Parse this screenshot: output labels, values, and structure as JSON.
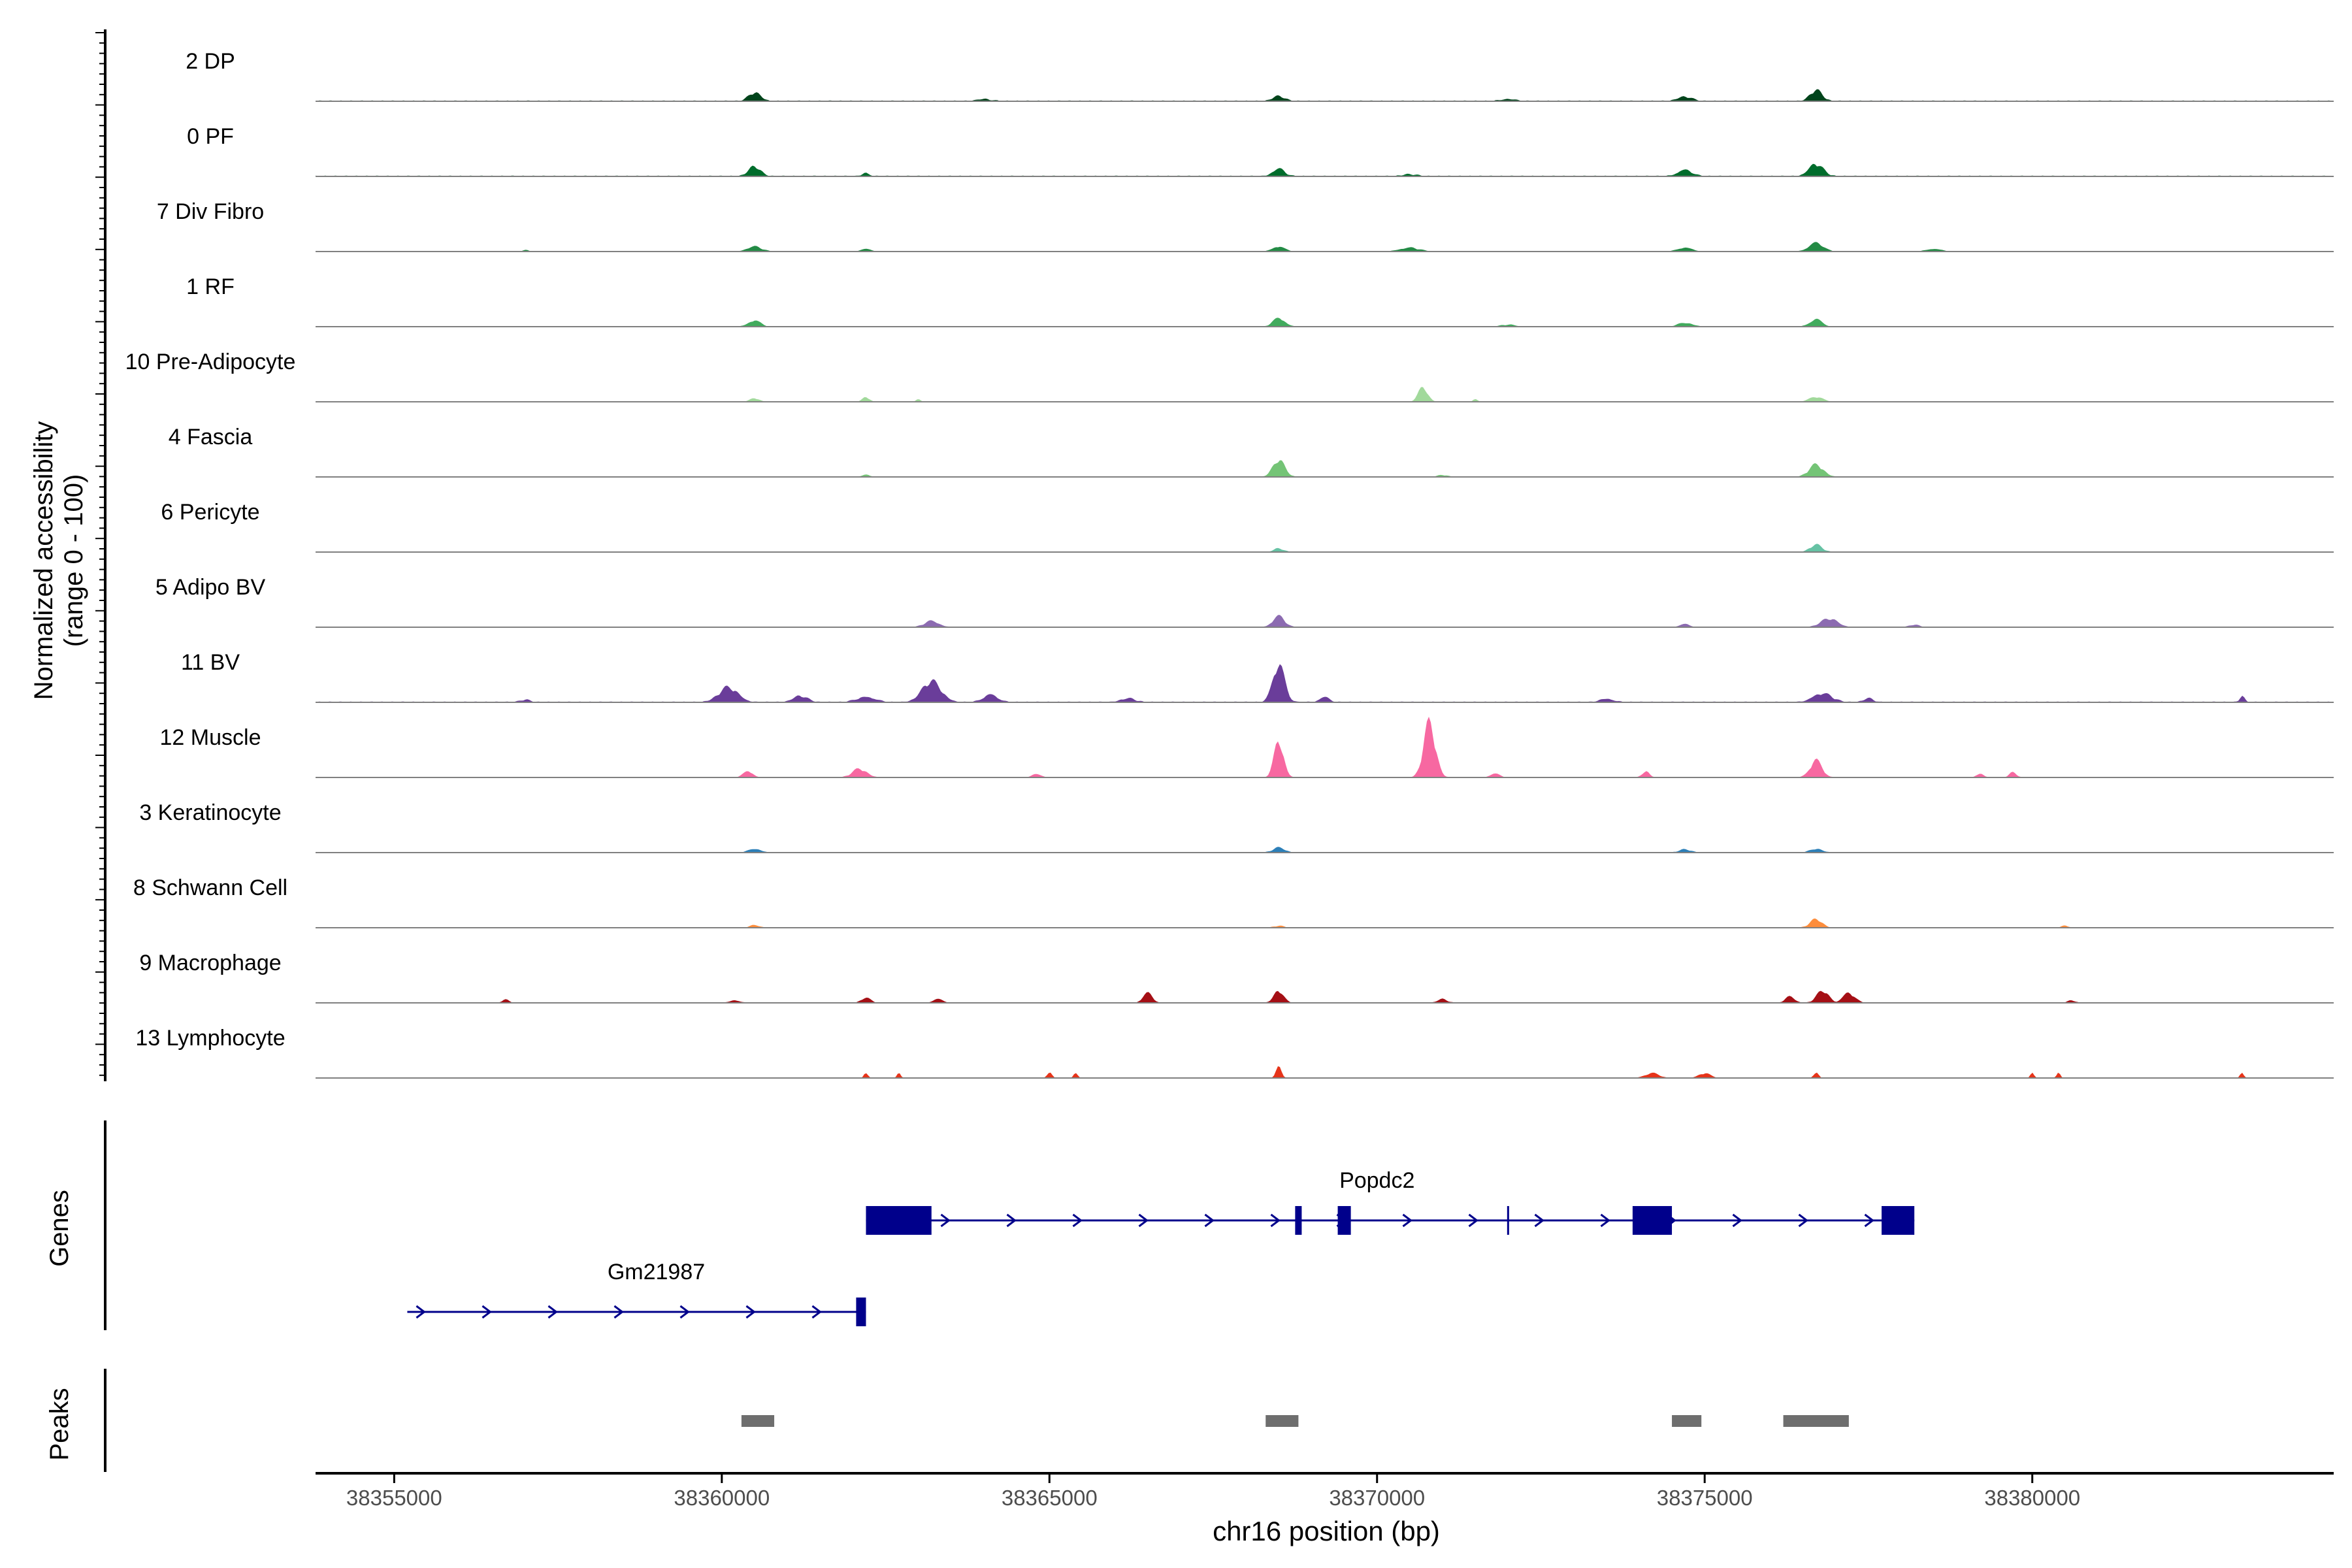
{
  "chart_data": {
    "type": "area",
    "title": "",
    "xlabel": "chr16 position (bp)",
    "ylabel_line1": "Normalized accessibility",
    "ylabel_line2": "(range 0 - 100)",
    "xlim": [
      38353800,
      38384600
    ],
    "ylim": [
      0,
      100
    ],
    "xticks": [
      38355000,
      38360000,
      38365000,
      38370000,
      38375000,
      38380000
    ],
    "xtick_labels": [
      "38355000",
      "38360000",
      "38365000",
      "38370000",
      "38375000",
      "38380000"
    ],
    "tracks": [
      {
        "name": "2 DP",
        "color": "#00441b",
        "peaks": [
          [
            38360500,
            14,
            250
          ],
          [
            38368500,
            8,
            250
          ],
          [
            38374700,
            7,
            300
          ],
          [
            38376700,
            18,
            250
          ],
          [
            38364000,
            3,
            300
          ],
          [
            38372000,
            3,
            300
          ]
        ],
        "floor": 2
      },
      {
        "name": "0 PF",
        "color": "#006d2c",
        "peaks": [
          [
            38360500,
            16,
            250
          ],
          [
            38362200,
            5,
            150
          ],
          [
            38368500,
            12,
            250
          ],
          [
            38374700,
            10,
            300
          ],
          [
            38376700,
            20,
            300
          ],
          [
            38370500,
            3,
            300
          ]
        ],
        "floor": 2
      },
      {
        "name": "7 Div Fibro",
        "color": "#238b45",
        "peaks": [
          [
            38360500,
            8,
            300
          ],
          [
            38362200,
            4,
            200
          ],
          [
            38368500,
            8,
            250
          ],
          [
            38370500,
            6,
            400
          ],
          [
            38374700,
            6,
            300
          ],
          [
            38376700,
            14,
            300
          ],
          [
            38378500,
            4,
            300
          ],
          [
            38357000,
            3,
            100
          ]
        ],
        "floor": 1
      },
      {
        "name": "1 RF",
        "color": "#41ab5d",
        "peaks": [
          [
            38360500,
            10,
            250
          ],
          [
            38368500,
            14,
            250
          ],
          [
            38374700,
            6,
            300
          ],
          [
            38376700,
            12,
            250
          ],
          [
            38372000,
            3,
            300
          ]
        ],
        "floor": 1
      },
      {
        "name": "10 Pre-Adipocyte",
        "color": "#a1d99b",
        "peaks": [
          [
            38360500,
            6,
            200
          ],
          [
            38362200,
            8,
            150
          ],
          [
            38363000,
            4,
            100
          ],
          [
            38370700,
            24,
            200
          ],
          [
            38371500,
            4,
            100
          ],
          [
            38376700,
            8,
            300
          ]
        ],
        "floor": 0
      },
      {
        "name": "4 Fascia",
        "color": "#74c476",
        "peaks": [
          [
            38368500,
            28,
            250
          ],
          [
            38376700,
            20,
            300
          ],
          [
            38362200,
            3,
            200
          ],
          [
            38371000,
            3,
            200
          ]
        ],
        "floor": 1
      },
      {
        "name": "6 Pericyte",
        "color": "#66c2a4",
        "peaks": [
          [
            38368500,
            6,
            200
          ],
          [
            38376700,
            12,
            250
          ]
        ],
        "floor": 1
      },
      {
        "name": "5 Adipo BV",
        "color": "#8c6bb1",
        "peaks": [
          [
            38363200,
            10,
            300
          ],
          [
            38368500,
            18,
            250
          ],
          [
            38374700,
            5,
            200
          ],
          [
            38376900,
            14,
            350
          ],
          [
            38378200,
            4,
            200
          ]
        ],
        "floor": 1
      },
      {
        "name": "11 BV",
        "color": "#6a3d9a",
        "peaks": [
          [
            38360100,
            24,
            400
          ],
          [
            38361200,
            10,
            300
          ],
          [
            38362200,
            8,
            400
          ],
          [
            38363200,
            34,
            400
          ],
          [
            38364100,
            12,
            300
          ],
          [
            38366200,
            6,
            300
          ],
          [
            38368500,
            62,
            250
          ],
          [
            38369200,
            8,
            200
          ],
          [
            38373500,
            5,
            300
          ],
          [
            38376800,
            14,
            400
          ],
          [
            38377500,
            6,
            200
          ],
          [
            38383200,
            10,
            100
          ],
          [
            38357000,
            4,
            200
          ]
        ],
        "floor": 2
      },
      {
        "name": "12 Muscle",
        "color": "#f768a1",
        "peaks": [
          [
            38360400,
            10,
            200
          ],
          [
            38362100,
            14,
            300
          ],
          [
            38364800,
            5,
            200
          ],
          [
            38368500,
            60,
            200
          ],
          [
            38370800,
            90,
            250
          ],
          [
            38371800,
            6,
            200
          ],
          [
            38374100,
            10,
            150
          ],
          [
            38376700,
            28,
            250
          ],
          [
            38379200,
            6,
            150
          ],
          [
            38379700,
            8,
            150
          ]
        ],
        "floor": 1
      },
      {
        "name": "3 Keratinocyte",
        "color": "#2c7fb8",
        "peaks": [
          [
            38360500,
            6,
            250
          ],
          [
            38368500,
            8,
            250
          ],
          [
            38374700,
            5,
            250
          ],
          [
            38376700,
            6,
            250
          ]
        ],
        "floor": 1
      },
      {
        "name": "8 Schwann Cell",
        "color": "#fd8d3c",
        "peaks": [
          [
            38376700,
            14,
            250
          ],
          [
            38360500,
            4,
            200
          ],
          [
            38368500,
            3,
            200
          ],
          [
            38380500,
            3,
            150
          ]
        ],
        "floor": 1
      },
      {
        "name": "9 Macrophage",
        "color": "#a50f15",
        "peaks": [
          [
            38356700,
            5,
            150
          ],
          [
            38362200,
            8,
            200
          ],
          [
            38363300,
            6,
            200
          ],
          [
            38366500,
            16,
            200
          ],
          [
            38368500,
            20,
            200
          ],
          [
            38371000,
            6,
            200
          ],
          [
            38376300,
            10,
            200
          ],
          [
            38376800,
            20,
            250
          ],
          [
            38377200,
            16,
            250
          ],
          [
            38380600,
            4,
            150
          ],
          [
            38360200,
            4,
            200
          ]
        ],
        "floor": 1
      },
      {
        "name": "13 Lymphocyte",
        "color": "#e6341a",
        "peaks": [
          [
            38362200,
            10,
            80
          ],
          [
            38362700,
            8,
            80
          ],
          [
            38365000,
            10,
            100
          ],
          [
            38365400,
            10,
            80
          ],
          [
            38368500,
            18,
            120
          ],
          [
            38374200,
            8,
            300
          ],
          [
            38375000,
            8,
            250
          ],
          [
            38376700,
            10,
            100
          ],
          [
            38380000,
            8,
            80
          ],
          [
            38380400,
            8,
            80
          ],
          [
            38383200,
            8,
            80
          ]
        ],
        "floor": 0
      }
    ],
    "genes_panel": {
      "label": "Genes",
      "genes": [
        {
          "name": "Popdc2",
          "row": 0,
          "start": 38362200,
          "end": 38378200,
          "strand": "+",
          "label_pos": 38370000,
          "exons": [
            [
              38362200,
              38363200
            ],
            [
              38368750,
              38368850
            ],
            [
              38369400,
              38369600
            ],
            [
              38373900,
              38374500
            ],
            [
              38377700,
              38378200
            ]
          ],
          "tick_at": 38372000
        },
        {
          "name": "Gm21987",
          "row": 1,
          "start": 38355200,
          "end": 38362200,
          "strand": "+",
          "label_pos": 38359000,
          "exons": [
            [
              38362050,
              38362200
            ]
          ]
        }
      ]
    },
    "peaks_panel": {
      "label": "Peaks",
      "regions": [
        [
          38360300,
          38360800
        ],
        [
          38368300,
          38368800
        ],
        [
          38374500,
          38374950
        ],
        [
          38376200,
          38377200
        ]
      ]
    }
  }
}
